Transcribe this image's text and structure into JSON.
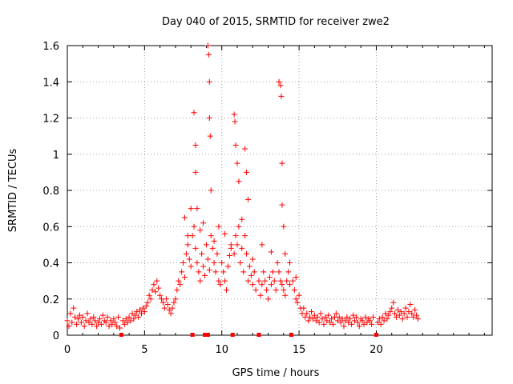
{
  "chart_data": {
    "type": "scatter",
    "title": "Day 040 of 2015, SRMTID for receiver zwe2",
    "xlabel": "GPS time / hours",
    "ylabel": "SRMTID / TECUs",
    "xlim": [
      0,
      27.5
    ],
    "ylim": [
      0,
      1.6
    ],
    "x_ticks": [
      0,
      5,
      10,
      15,
      20
    ],
    "x_tick_labels": [
      "0",
      "5",
      "10",
      "15",
      "20"
    ],
    "y_ticks": [
      0,
      0.2,
      0.4,
      0.6,
      0.8,
      1.0,
      1.2,
      1.4,
      1.6
    ],
    "y_tick_labels": [
      "0",
      "0.2",
      "0.4",
      "0.6",
      "0.8",
      "1",
      "1.2",
      "1.4",
      "1.6"
    ],
    "grid": true,
    "marker": "plus",
    "color": "#ff0000",
    "series": [
      {
        "name": "SRMTID",
        "x": [
          0.0,
          0.1,
          0.2,
          0.3,
          0.4,
          0.5,
          0.6,
          0.7,
          0.8,
          0.9,
          1.0,
          1.1,
          1.2,
          1.3,
          1.4,
          1.5,
          1.6,
          1.7,
          1.8,
          1.9,
          2.0,
          2.1,
          2.2,
          2.3,
          2.4,
          2.5,
          2.6,
          2.7,
          2.8,
          2.9,
          3.0,
          3.1,
          3.2,
          3.3,
          3.4,
          3.6,
          3.7,
          3.8,
          3.9,
          4.0,
          4.1,
          4.2,
          4.3,
          4.4,
          4.5,
          4.6,
          4.7,
          4.8,
          4.9,
          5.0,
          5.1,
          5.2,
          5.3,
          5.4,
          5.5,
          5.6,
          5.7,
          5.8,
          5.9,
          6.0,
          6.1,
          6.2,
          6.3,
          6.4,
          6.5,
          6.6,
          6.7,
          6.8,
          6.9,
          7.0,
          7.1,
          7.2,
          7.3,
          7.4,
          7.5,
          7.6,
          7.7,
          7.8,
          7.9,
          8.0,
          8.1,
          8.2,
          8.3,
          8.4,
          8.5,
          8.6,
          8.7,
          8.8,
          8.9,
          9.0,
          9.1,
          9.2,
          9.3,
          9.4,
          9.5,
          9.6,
          9.7,
          9.8,
          9.9,
          10.0,
          10.1,
          10.2,
          10.3,
          10.4,
          10.5,
          10.6,
          10.8,
          10.9,
          11.0,
          11.1,
          11.2,
          11.3,
          11.4,
          11.5,
          11.6,
          11.7,
          11.8,
          11.9,
          12.0,
          12.1,
          12.2,
          12.4,
          12.5,
          12.6,
          12.7,
          12.8,
          12.9,
          13.0,
          13.1,
          13.2,
          13.3,
          13.4,
          13.5,
          13.6,
          13.7,
          13.8,
          13.9,
          14.0,
          14.1,
          14.2,
          14.3,
          14.4,
          14.6,
          14.7,
          14.8,
          14.9,
          15.0,
          15.1,
          15.2,
          15.3,
          15.4,
          15.5,
          15.6,
          15.7,
          15.8,
          15.9,
          16.0,
          16.1,
          16.2,
          16.3,
          16.4,
          16.5,
          16.6,
          16.7,
          16.8,
          16.9,
          17.0,
          17.1,
          17.2,
          17.3,
          17.4,
          17.5,
          17.6,
          17.7,
          17.8,
          17.9,
          18.0,
          18.1,
          18.2,
          18.3,
          18.4,
          18.5,
          18.6,
          18.7,
          18.8,
          18.9,
          19.0,
          19.1,
          19.2,
          19.3,
          19.4,
          19.5,
          19.6,
          19.7,
          19.8,
          20.1,
          20.2,
          20.3,
          20.4,
          20.5,
          20.6,
          20.7,
          20.8,
          20.9,
          21.0,
          21.1,
          21.2,
          21.3,
          21.4,
          21.5,
          21.6,
          21.7,
          21.8,
          21.9,
          22.0,
          22.1,
          22.2,
          22.3,
          22.4,
          22.5,
          22.6,
          22.7,
          8.2,
          8.3,
          8.3,
          8.4,
          9.1,
          9.15,
          9.2,
          9.2,
          9.25,
          9.3,
          10.8,
          10.85,
          10.9,
          11.0,
          11.1,
          11.5,
          11.6,
          11.7,
          13.7,
          13.8,
          13.85,
          13.9,
          13.9,
          14.0,
          14.1,
          7.6,
          7.8,
          8.0,
          8.6,
          8.8,
          9.5,
          9.8,
          10.2,
          10.6,
          11.3,
          12.0,
          12.6,
          13.2,
          14.4,
          14.8
        ],
        "y": [
          0.08,
          0.05,
          0.12,
          0.07,
          0.15,
          0.1,
          0.06,
          0.09,
          0.11,
          0.07,
          0.1,
          0.05,
          0.08,
          0.12,
          0.07,
          0.09,
          0.06,
          0.1,
          0.08,
          0.05,
          0.07,
          0.09,
          0.06,
          0.11,
          0.08,
          0.07,
          0.1,
          0.05,
          0.08,
          0.06,
          0.09,
          0.07,
          0.05,
          0.1,
          0.04,
          0.08,
          0.06,
          0.09,
          0.07,
          0.1,
          0.08,
          0.12,
          0.09,
          0.11,
          0.13,
          0.1,
          0.14,
          0.12,
          0.15,
          0.13,
          0.16,
          0.18,
          0.22,
          0.2,
          0.25,
          0.28,
          0.24,
          0.3,
          0.26,
          0.22,
          0.2,
          0.18,
          0.15,
          0.2,
          0.17,
          0.14,
          0.12,
          0.15,
          0.18,
          0.2,
          0.25,
          0.3,
          0.28,
          0.35,
          0.4,
          0.32,
          0.45,
          0.5,
          0.42,
          0.38,
          0.55,
          0.6,
          0.48,
          0.4,
          0.35,
          0.3,
          0.45,
          0.38,
          0.33,
          0.5,
          0.42,
          0.36,
          0.55,
          0.48,
          0.4,
          0.35,
          0.45,
          0.3,
          0.28,
          0.4,
          0.35,
          0.3,
          0.25,
          0.38,
          0.44,
          0.5,
          0.45,
          0.55,
          0.5,
          0.6,
          0.4,
          0.48,
          0.35,
          0.55,
          0.45,
          0.3,
          0.38,
          0.33,
          0.28,
          0.35,
          0.25,
          0.3,
          0.22,
          0.28,
          0.35,
          0.3,
          0.25,
          0.2,
          0.32,
          0.28,
          0.35,
          0.3,
          0.25,
          0.4,
          0.35,
          0.3,
          0.28,
          0.25,
          0.22,
          0.3,
          0.35,
          0.28,
          0.3,
          0.25,
          0.2,
          0.18,
          0.22,
          0.15,
          0.12,
          0.15,
          0.1,
          0.12,
          0.08,
          0.1,
          0.13,
          0.09,
          0.11,
          0.08,
          0.1,
          0.07,
          0.12,
          0.09,
          0.06,
          0.1,
          0.08,
          0.11,
          0.07,
          0.09,
          0.06,
          0.1,
          0.12,
          0.08,
          0.1,
          0.07,
          0.09,
          0.05,
          0.08,
          0.1,
          0.07,
          0.09,
          0.06,
          0.11,
          0.08,
          0.1,
          0.07,
          0.05,
          0.09,
          0.08,
          0.06,
          0.1,
          0.07,
          0.09,
          0.08,
          0.06,
          0.1,
          0.07,
          0.09,
          0.06,
          0.1,
          0.08,
          0.12,
          0.09,
          0.11,
          0.13,
          0.15,
          0.18,
          0.12,
          0.1,
          0.14,
          0.11,
          0.13,
          0.09,
          0.12,
          0.15,
          0.1,
          0.13,
          0.17,
          0.12,
          0.1,
          0.14,
          0.11,
          0.09,
          1.23,
          1.05,
          0.9,
          0.7,
          1.6,
          1.55,
          1.4,
          1.2,
          1.1,
          0.8,
          1.22,
          1.18,
          1.05,
          0.95,
          0.85,
          1.03,
          0.9,
          0.75,
          1.4,
          1.38,
          1.32,
          0.95,
          0.72,
          0.6,
          0.45,
          0.65,
          0.55,
          0.7,
          0.58,
          0.62,
          0.52,
          0.6,
          0.56,
          0.48,
          0.64,
          0.42,
          0.5,
          0.46,
          0.4,
          0.32
        ]
      }
    ],
    "gap_markers_x": [
      3.5,
      8.1,
      8.9,
      9.1,
      10.7,
      12.4,
      14.5,
      20.0
    ]
  }
}
